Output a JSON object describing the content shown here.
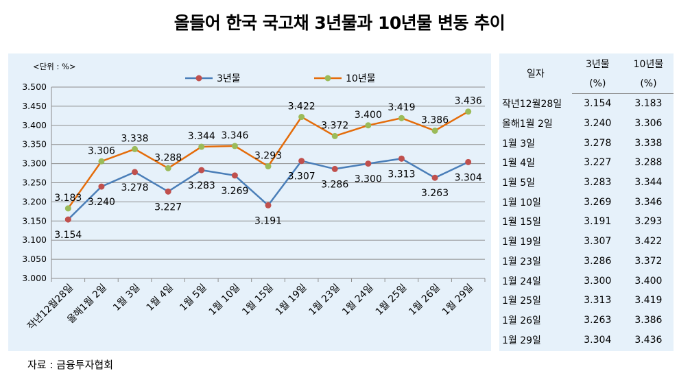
{
  "title": "올들어 한국 국고채 3년물과 10년물 변동 추이",
  "source": "자료 : 금융투자협회",
  "chart_data": {
    "type": "line",
    "unit_label": "<단위 : %>",
    "categories": [
      "작년12월28일",
      "올해1월 2일",
      "1월 3일",
      "1월 4일",
      "1월 5일",
      "1월 10일",
      "1월 15일",
      "1월 19일",
      "1월 23일",
      "1월 24일",
      "1월 25일",
      "1월 26일",
      "1월 29일"
    ],
    "series": [
      {
        "name": "3년물",
        "color": "#4a7eb8",
        "marker_color": "#c0504d",
        "values": [
          3.154,
          3.24,
          3.278,
          3.227,
          3.283,
          3.269,
          3.191,
          3.307,
          3.286,
          3.3,
          3.313,
          3.263,
          3.304
        ]
      },
      {
        "name": "10년물",
        "color": "#e46c0a",
        "marker_color": "#9bbb59",
        "values": [
          3.183,
          3.306,
          3.338,
          3.288,
          3.344,
          3.346,
          3.293,
          3.422,
          3.372,
          3.4,
          3.419,
          3.386,
          3.436
        ]
      }
    ],
    "ylim": [
      3.0,
      3.5
    ],
    "yticks": [
      "3.000",
      "3.050",
      "3.100",
      "3.150",
      "3.200",
      "3.250",
      "3.300",
      "3.350",
      "3.400",
      "3.450",
      "3.500"
    ],
    "grid": true,
    "legend": "top"
  },
  "table": {
    "header_date": "일자",
    "header_3y": "3년물",
    "header_10y": "10년물",
    "unit_3y": "(%)",
    "unit_10y": "(%)",
    "rows": [
      {
        "date": "작년12월28일",
        "y3": "3.154",
        "y10": "3.183"
      },
      {
        "date": "올해1월 2일",
        "y3": "3.240",
        "y10": "3.306"
      },
      {
        "date": "1월 3일",
        "y3": "3.278",
        "y10": "3.338"
      },
      {
        "date": "1월 4일",
        "y3": "3.227",
        "y10": "3.288"
      },
      {
        "date": "1월 5일",
        "y3": "3.283",
        "y10": "3.344"
      },
      {
        "date": "1월 10일",
        "y3": "3.269",
        "y10": "3.346"
      },
      {
        "date": "1월 15일",
        "y3": "3.191",
        "y10": "3.293"
      },
      {
        "date": "1월 19일",
        "y3": "3.307",
        "y10": "3.422"
      },
      {
        "date": "1월 23일",
        "y3": "3.286",
        "y10": "3.372"
      },
      {
        "date": "1월 24일",
        "y3": "3.300",
        "y10": "3.400"
      },
      {
        "date": "1월 25일",
        "y3": "3.313",
        "y10": "3.419"
      },
      {
        "date": "1월 26일",
        "y3": "3.263",
        "y10": "3.386"
      },
      {
        "date": "1월 29일",
        "y3": "3.304",
        "y10": "3.436"
      }
    ]
  }
}
